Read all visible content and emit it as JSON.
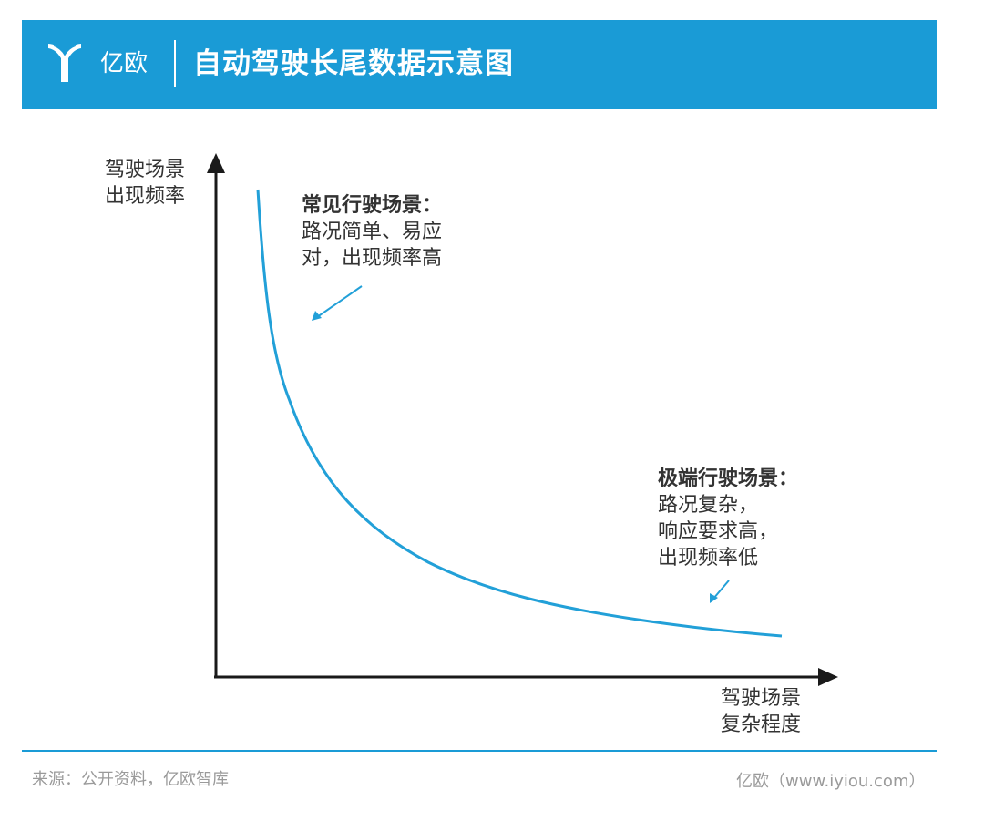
{
  "header": {
    "logo_text": "亿欧",
    "title": "自动驾驶长尾数据示意图"
  },
  "axes": {
    "y_label_lines": [
      "驾驶场景",
      "出现频率"
    ],
    "x_label_lines": [
      "驾驶场景",
      "复杂程度"
    ]
  },
  "annotations": {
    "common": {
      "heading": "常见行驶场景：",
      "lines": [
        "路况简单、易应",
        "对，出现频率高"
      ]
    },
    "extreme": {
      "heading": "极端行驶场景：",
      "lines": [
        "路况复杂，",
        "响应要求高，",
        "出现频率低"
      ]
    }
  },
  "footer": {
    "source": "来源：公开资料，亿欧智库",
    "brand": "亿欧（www.iyiou.com）"
  },
  "colors": {
    "brand_blue": "#1a9bd6",
    "curve": "#22a0d8",
    "axis": "#1a1a1a"
  }
}
